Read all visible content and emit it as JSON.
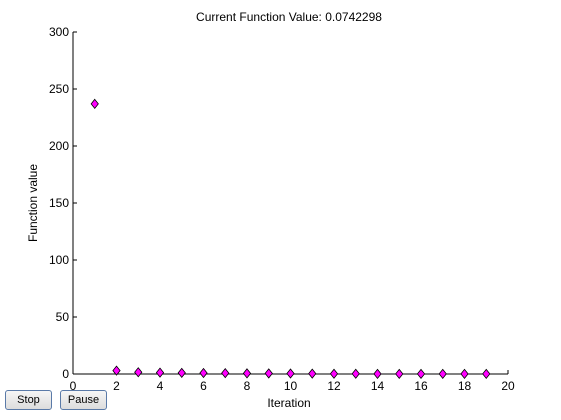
{
  "chart_data": {
    "type": "scatter",
    "title": "Current Function Value: 0.0742298",
    "xlabel": "Iteration",
    "ylabel": "Function value",
    "xlim": [
      0,
      20
    ],
    "ylim": [
      0,
      300
    ],
    "xticks": [
      0,
      2,
      4,
      6,
      8,
      10,
      12,
      14,
      16,
      18,
      20
    ],
    "yticks": [
      0,
      50,
      100,
      150,
      200,
      250,
      300
    ],
    "grid": false,
    "marker": "diamond",
    "marker_color": "#ff00ff",
    "marker_edge_color": "#000000",
    "x": [
      1,
      2,
      3,
      4,
      5,
      6,
      7,
      8,
      9,
      10,
      11,
      12,
      13,
      14,
      15,
      16,
      17,
      18,
      19
    ],
    "y": [
      237,
      3,
      1.5,
      1.2,
      1.0,
      0.9,
      0.8,
      0.6,
      0.5,
      0.4,
      0.3,
      0.25,
      0.2,
      0.15,
      0.12,
      0.1,
      0.09,
      0.08,
      0.0742298
    ]
  },
  "buttons": {
    "stop_label": "Stop",
    "pause_label": "Pause"
  }
}
